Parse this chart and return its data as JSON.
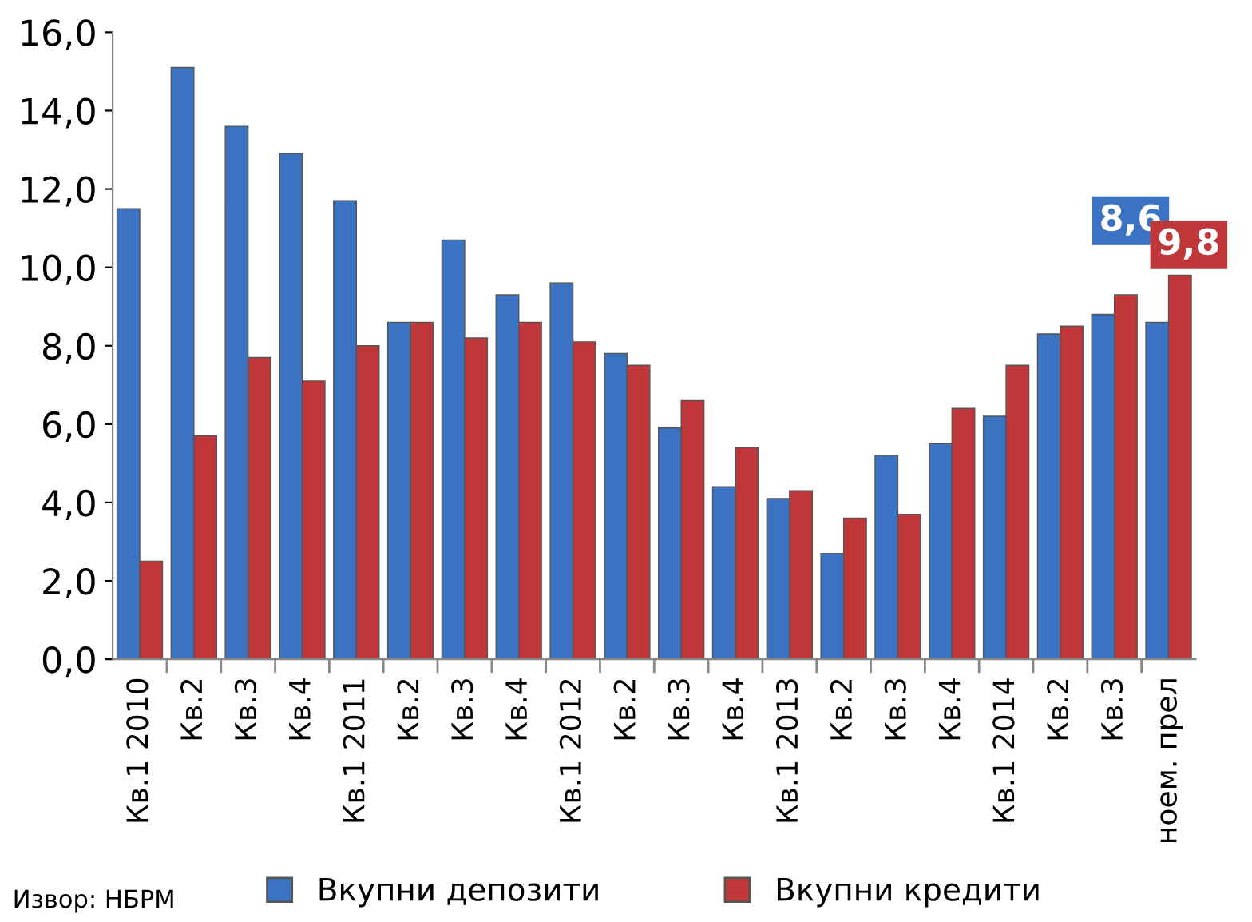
{
  "chart_data": {
    "type": "bar",
    "categories": [
      "Кв.1 2010",
      "Кв.2",
      "Кв.3",
      "Кв.4",
      "Кв.1 2011",
      "Кв.2",
      "Кв.3",
      "Кв.4",
      "Кв.1 2012",
      "Кв.2",
      "Кв.3",
      "Кв.4",
      "Кв.1 2013",
      "Кв.2",
      "Кв.3",
      "Кв.4",
      "Кв.1 2014",
      "Кв.2",
      "Кв.3",
      "ноем. прел"
    ],
    "series": [
      {
        "name": "Вкупни депозити",
        "color": "#3b73c2",
        "values": [
          11.5,
          15.1,
          13.6,
          12.9,
          11.7,
          8.6,
          10.7,
          9.3,
          9.6,
          7.8,
          5.9,
          4.4,
          4.1,
          2.7,
          5.2,
          5.5,
          6.2,
          8.3,
          8.8,
          8.6
        ],
        "value_labels": [
          null,
          null,
          null,
          null,
          null,
          null,
          null,
          null,
          null,
          null,
          null,
          null,
          null,
          null,
          null,
          null,
          null,
          null,
          null,
          "8,6"
        ]
      },
      {
        "name": "Вкупни кредити",
        "color": "#c0373a",
        "values": [
          2.5,
          5.7,
          7.7,
          7.1,
          8.0,
          8.6,
          8.2,
          8.6,
          8.1,
          7.5,
          6.6,
          5.4,
          4.3,
          3.6,
          3.7,
          6.4,
          7.5,
          8.5,
          9.3,
          9.8
        ],
        "value_labels": [
          null,
          null,
          null,
          null,
          null,
          null,
          null,
          null,
          null,
          null,
          null,
          null,
          null,
          null,
          null,
          null,
          null,
          null,
          null,
          "9,8"
        ]
      }
    ],
    "ylim": [
      0,
      16
    ],
    "yticks": [
      {
        "value": 0,
        "label": "0,0"
      },
      {
        "value": 2,
        "label": "2,0"
      },
      {
        "value": 4,
        "label": "4,0"
      },
      {
        "value": 6,
        "label": "6,0"
      },
      {
        "value": 8,
        "label": "8,0"
      },
      {
        "value": 10,
        "label": "10,0"
      },
      {
        "value": 12,
        "label": "12,0"
      },
      {
        "value": 14,
        "label": "14,0"
      },
      {
        "value": 16,
        "label": "16,0"
      }
    ],
    "grid": false,
    "legend": "bottom",
    "annotations": [
      "Извор: НБРМ"
    ]
  }
}
